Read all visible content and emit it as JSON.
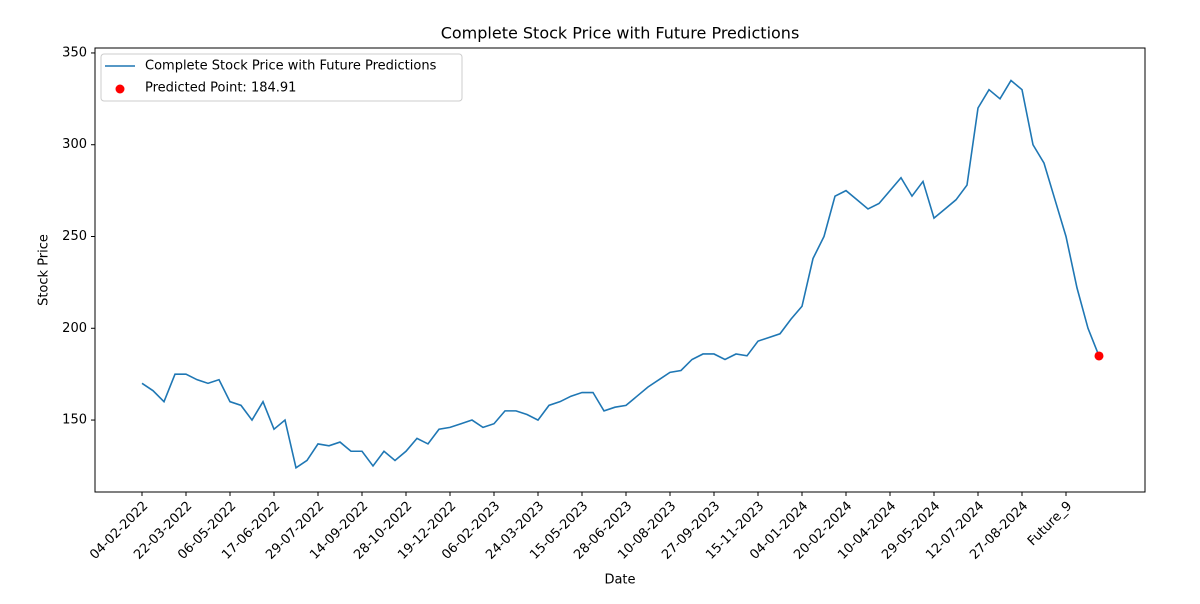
{
  "chart_data": {
    "type": "line",
    "title": "Complete Stock Price with Future Predictions",
    "x_label": "Date",
    "y_label": "Stock Price",
    "categories": [
      "04-02-2022",
      null,
      null,
      null,
      "22-03-2022",
      null,
      null,
      null,
      "06-05-2022",
      null,
      null,
      null,
      "17-06-2022",
      null,
      null,
      null,
      "29-07-2022",
      null,
      null,
      null,
      "14-09-2022",
      null,
      null,
      null,
      "28-10-2022",
      null,
      null,
      null,
      "19-12-2022",
      null,
      null,
      null,
      "06-02-2023",
      null,
      null,
      null,
      "24-03-2023",
      null,
      null,
      null,
      "15-05-2023",
      null,
      null,
      null,
      "28-06-2023",
      null,
      null,
      null,
      "10-08-2023",
      null,
      null,
      null,
      "27-09-2023",
      null,
      null,
      null,
      "15-11-2023",
      null,
      null,
      null,
      "04-01-2024",
      null,
      null,
      null,
      "20-02-2024",
      null,
      null,
      null,
      "10-04-2024",
      null,
      null,
      null,
      "29-05-2024",
      null,
      null,
      null,
      "12-07-2024",
      null,
      null,
      null,
      "27-08-2024",
      null,
      null,
      null,
      "Future_9",
      null,
      null,
      null
    ],
    "series": [
      {
        "name": "Complete Stock Price with Future Predictions",
        "color": "#1f77b4",
        "values": [
          170,
          166,
          160,
          175,
          175,
          172,
          170,
          172,
          160,
          158,
          150,
          160,
          145,
          150,
          124,
          128,
          137,
          136,
          138,
          133,
          133,
          125,
          133,
          128,
          133,
          140,
          137,
          145,
          146,
          148,
          150,
          146,
          148,
          155,
          155,
          153,
          150,
          158,
          160,
          163,
          165,
          165,
          155,
          157,
          158,
          163,
          168,
          172,
          176,
          177,
          183,
          186,
          186,
          183,
          186,
          185,
          193,
          195,
          197,
          205,
          212,
          238,
          250,
          272,
          275,
          270,
          265,
          268,
          275,
          282,
          272,
          280,
          260,
          265,
          270,
          278,
          320,
          330,
          325,
          335,
          330,
          300,
          290,
          270,
          250,
          222,
          200,
          184.91
        ]
      }
    ],
    "predicted": {
      "name": "Predicted Point: 184.91",
      "value": 184.91,
      "color": "red"
    },
    "ylim": [
      110.8,
      352.7
    ],
    "yticks": [
      150,
      200,
      250,
      300,
      350
    ],
    "legend": "upper left"
  }
}
